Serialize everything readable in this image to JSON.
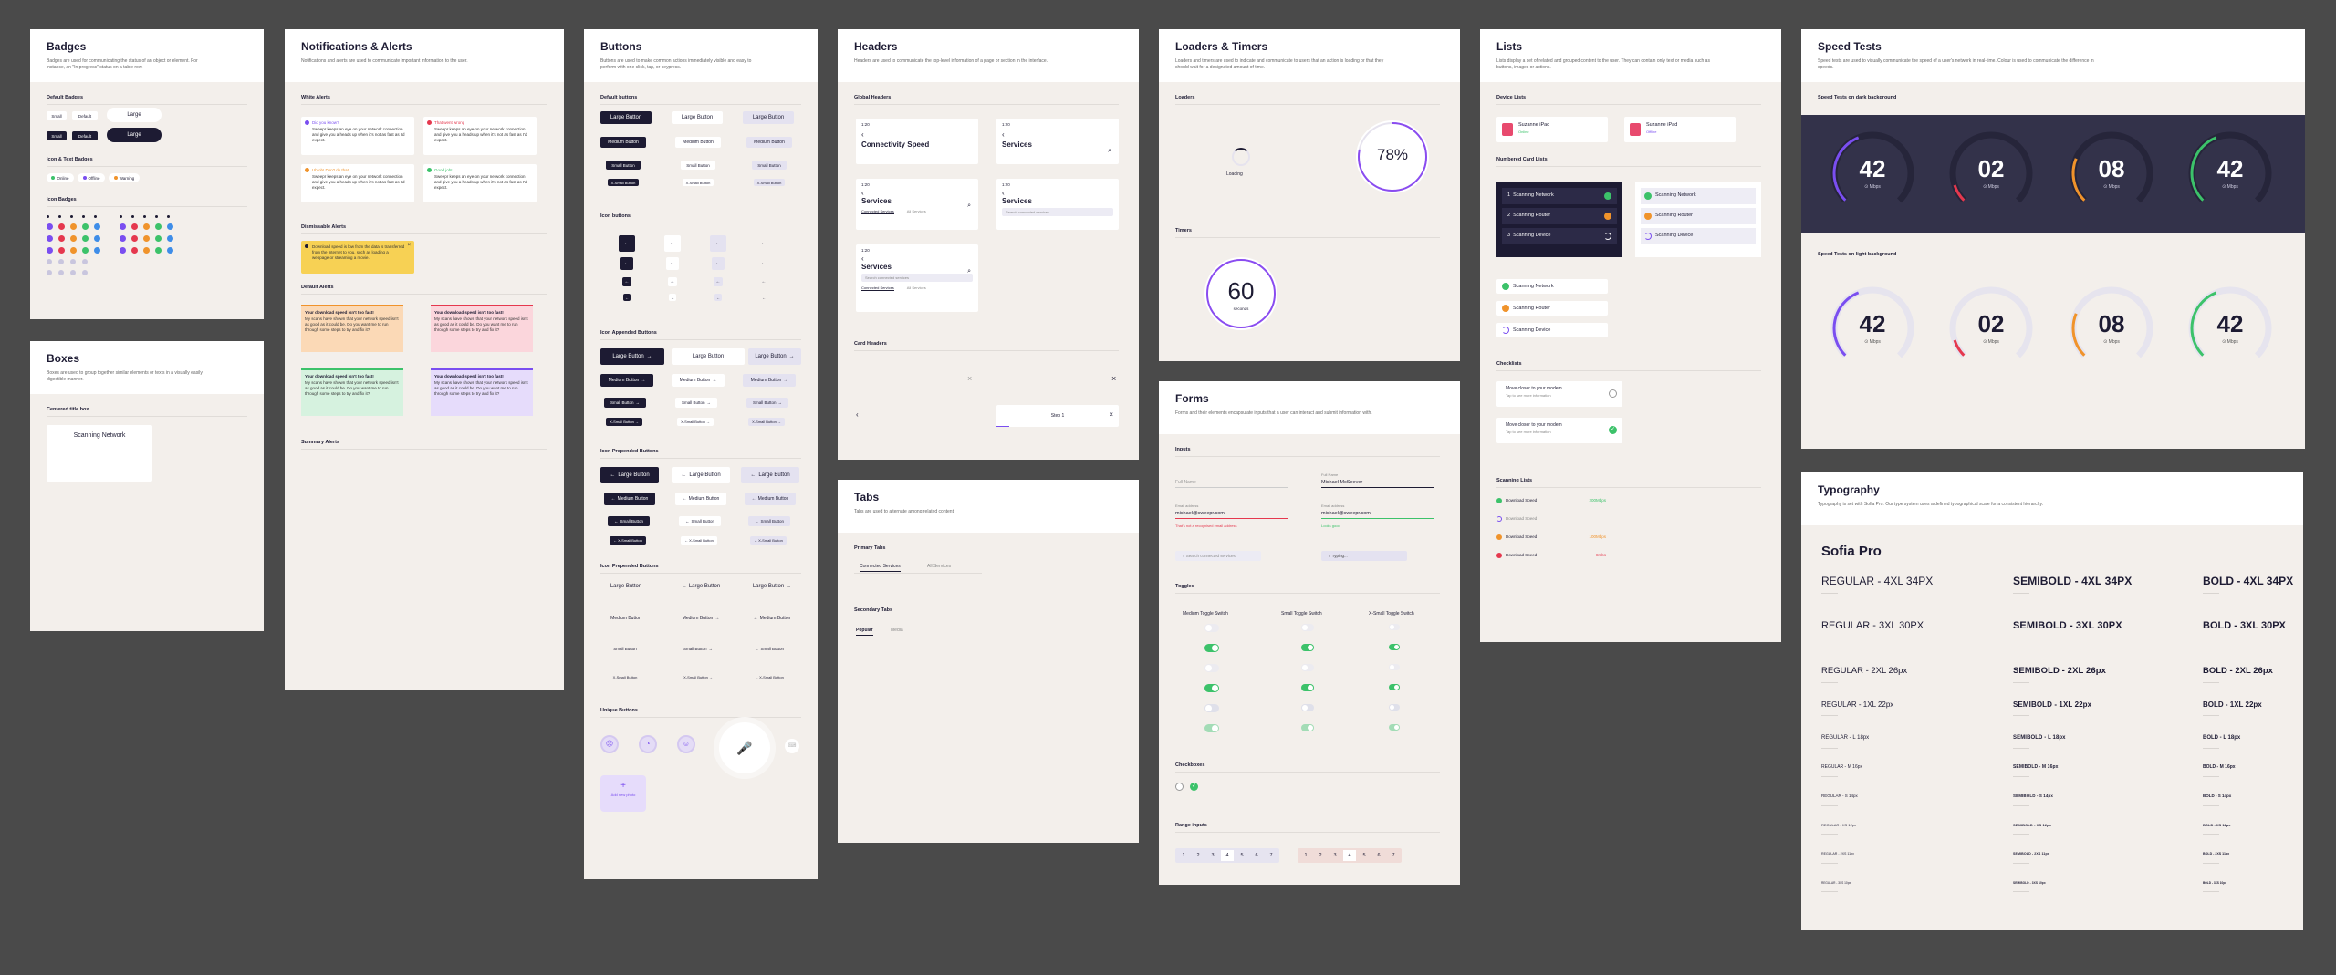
{
  "badges": {
    "title": "Badges",
    "desc": "Badges are used for communicating the status of an object or element. For instance, an \"In progress\" status on a table row.",
    "default_badges": "Default Badges",
    "small_light": "Small",
    "default_light": "Default",
    "large_light": "Large",
    "small_dark": "Small",
    "default_dark": "Default",
    "large_dark": "Large",
    "icon_text_badges": "Icon & Text Badges",
    "online": "Online",
    "offline": "Offline",
    "warning": "Warning",
    "icon_badges": "Icon Badges",
    "colors": {
      "purple": "#7a4ef0",
      "red": "#e5384e",
      "orange": "#f0932b",
      "green": "#3cc26a",
      "blue": "#3e8de8"
    }
  },
  "boxes": {
    "title": "Boxes",
    "desc": "Boxes are used to group together similar elements or texts in a visually easily digestible manner.",
    "centered_title": "Centered title box",
    "box_label": "Scanning Network"
  },
  "notifications": {
    "title": "Notifications & Alerts",
    "desc": "Notifications and alerts are used to communicate important information to the user.",
    "white_alerts": "White Alerts",
    "alert1_title": "Did you know?",
    "alert2_title": "That went wrong",
    "alert3_title": "Uh oh! Don't do that",
    "alert4_title": "Good job!",
    "alert_body": "Sweepr keeps an eye on your network connection and give you a heads up when it's not as fast as I'd expect.",
    "dismissable": "Dismissable Alerts",
    "dismiss_text": "Download speed is low from the data is transferred from the internet to you, such as loading a webpage or streaming a movie.",
    "default_alerts": "Default Alerts",
    "default_title": "Your download speed isn't too fast!",
    "default_body": "My scans have shown that your network speed isn't as good as it could be. Do you want me to run through some steps to try and fix it?",
    "summary_alerts": "Summary Alerts"
  },
  "buttons": {
    "title": "Buttons",
    "desc": "Buttons are used to make common actions immediately visible and easy to perform with one click, tap, or keypress.",
    "default_buttons": "Default buttons",
    "large": "Large Button",
    "medium": "Medium Button",
    "small": "Small Button",
    "xsmall": "X-Small Button",
    "icon_buttons": "Icon buttons",
    "icon_appended": "Icon Appended Buttons",
    "icon_prepended": "Icon Prepended Buttons",
    "icon_prepended2": "Icon Prepended Buttons",
    "unique_buttons": "Unique Buttons",
    "add_photo": "Add new photo"
  },
  "headers": {
    "title": "Headers",
    "desc": "Headers are used to communicate the top-level information of a page or section in the interface.",
    "global_headers": "Global Headers",
    "time": "1:20",
    "connectivity": "Connectivity Speed",
    "services": "Services",
    "connected_services": "Connected Services",
    "all_services": "All Services",
    "search_placeholder": "Search connected services",
    "card_headers": "Card Headers",
    "step": "Step 1"
  },
  "tabs": {
    "title": "Tabs",
    "desc": "Tabs are used to alternate among related content",
    "primary": "Primary Tabs",
    "tab1": "Connected Services",
    "tab2": "All Services",
    "secondary": "Secondary Tabs",
    "stab1": "Popular",
    "stab2": "Media"
  },
  "loaders": {
    "title": "Loaders & Timers",
    "desc": "Loaders and timers are used to indicate and communicate to users that an action is loading or that they should wait for a designated amount of time.",
    "loaders": "Loaders",
    "loading": "Loading",
    "percent": "78%",
    "percent_value": 78,
    "timers": "Timers",
    "timer_value": "60",
    "timer_unit": "seconds"
  },
  "forms": {
    "title": "Forms",
    "desc": "Forms and their elements encapsulate inputs that a user can interact and submit information with.",
    "inputs": "Inputs",
    "full_name_ph": "Full Name",
    "full_name_label": "Full Name",
    "full_name_value": "Michael McSeever",
    "email_label": "Email address",
    "email_value": "michael@sweepr.com",
    "email_error": "That's not a recognised email address",
    "email_label2": "Email address",
    "email_value2": "michael@sweepr.com",
    "email_ok": "Looks good",
    "search_ph": "Search connected services",
    "typing": "Typing...",
    "toggles": "Toggles",
    "medium_toggle": "Medium Toggle Switch",
    "small_toggle": "Small Toggle Switch",
    "xsmall_toggle": "X-Small Toggle Switch",
    "checkboxes": "Checkboxes",
    "range_inputs": "Range inputs",
    "range": [
      "1",
      "2",
      "3",
      "4",
      "5",
      "6",
      "7"
    ]
  },
  "lists": {
    "title": "Lists",
    "desc": "Lists display a set of related and grouped content to the user. They can contain only text or media such as buttons, images or actions.",
    "device_lists": "Device Lists",
    "device_name": "Suzanne iPad",
    "device_status_online": "Online",
    "device_status_offline": "Offline",
    "numbered_card": "Numbered Card Lists",
    "scan_network": "Scanning Network",
    "scan_router": "Scanning Router",
    "scan_device": "Scanning Device",
    "checklists": "Checklists",
    "check_title": "Move closer to your modem",
    "check_sub": "Tap to see more information",
    "scanning_lists": "Scanning Lists",
    "download_speed": "Download Speed",
    "fast": "200Mbps",
    "medium": "100Mbps",
    "slow": "8mbs"
  },
  "speed": {
    "title": "Speed Tests",
    "desc": "Speed tests are used to visually communicate the speed of a user's network in real-time. Colour is used to communicate the difference in speeds.",
    "dark_bg": "Speed Tests on dark background",
    "light_bg": "Speed Tests on light background",
    "unit": "Mbps",
    "gauges": [
      {
        "value": "42",
        "color": "#7a4ef0",
        "fraction": 0.42
      },
      {
        "value": "02",
        "color": "#e5384e",
        "fraction": 0.1
      },
      {
        "value": "08",
        "color": "#f0932b",
        "fraction": 0.25
      },
      {
        "value": "42",
        "color": "#3cc26a",
        "fraction": 0.42
      }
    ]
  },
  "typography": {
    "title": "Typography",
    "desc": "Typography is set with Sofia Pro. Our type system uses a defined typographical scale for a consistent hierarchy.",
    "font_name": "Sofia Pro",
    "regular": [
      "REGULAR - 4XL 34PX",
      "REGULAR - 3XL 30PX",
      "REGULAR - 2XL 26px",
      "REGULAR - 1XL 22px",
      "REGULAR - L 18px",
      "REGULAR - M 16px",
      "REGULAR - S 14px",
      "REGULAR - XS 12px",
      "REGULAR - 2XS 11px",
      "REGULAR - 3XS 10px"
    ],
    "semibold": [
      "SEMIBOLD - 4XL 34PX",
      "SEMIBOLD - 3XL 30PX",
      "SEMIBOLD - 2XL 26px",
      "SEMIBOLD - 1XL 22px",
      "SEMIBOLD - L 18px",
      "SEMIBOLD - M 16px",
      "SEMIBOLD - S 14px",
      "SEMIBOLD - XS 12px",
      "SEMIBOLD - 2XS 11px",
      "SEMIBOLD - 3XS 10px"
    ],
    "bold": [
      "BOLD - 4XL 34PX",
      "BOLD - 3XL 30PX",
      "BOLD - 2XL 26px",
      "BOLD - 1XL 22px",
      "BOLD - L 18px",
      "BOLD - M 16px",
      "BOLD - S 14px",
      "BOLD - XS 12px",
      "BOLD - 2XS 11px",
      "BOLD - 3XS 10px"
    ]
  }
}
